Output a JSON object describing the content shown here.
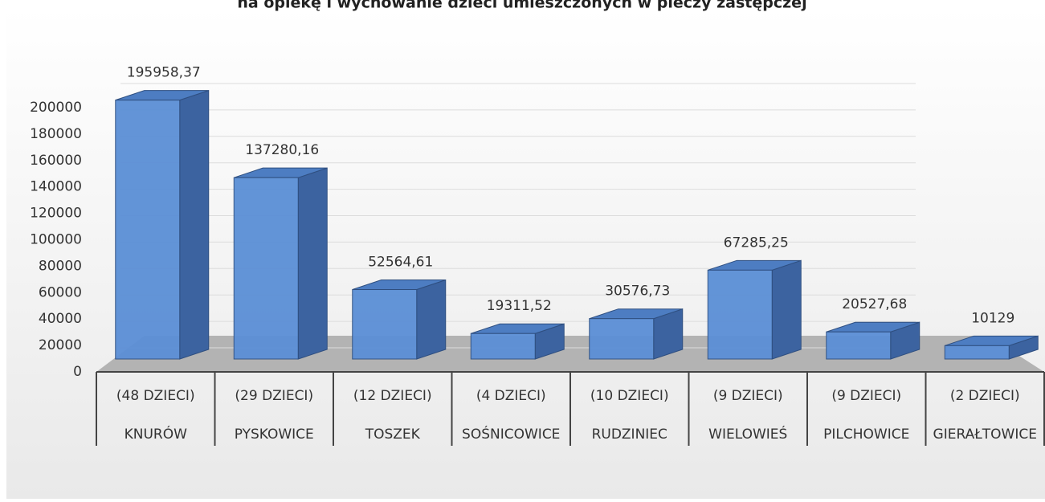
{
  "chart_data": {
    "type": "bar3d",
    "title": "na opiekę i wychowanie dzieci umieszczonych w pieczy zastępczej",
    "categories": [
      "KNURÓW",
      "PYSKOWICE",
      "TOSZEK",
      "SOŚNICOWICE",
      "RUDZINIEC",
      "WIELOWIEŚ",
      "PILCHOWICE",
      "GIERAŁTOWICE"
    ],
    "category_counts": [
      "(48 DZIECI)",
      "(29 DZIECI)",
      "(12 DZIECI)",
      "(4 DZIECI)",
      "(10 DZIECI)",
      "(9 DZIECI)",
      "(9 DZIECI)",
      "(2 DZIECI)"
    ],
    "values": [
      195958.37,
      137280.16,
      52564.61,
      19311.52,
      30576.73,
      67285.25,
      20527.68,
      10129
    ],
    "value_labels": [
      "195958,37",
      "137280,16",
      "52564,61",
      "19311,52",
      "30576,73",
      "67285,25",
      "20527,68",
      "10129"
    ],
    "color": "#5b8fd6",
    "ylim": [
      0,
      200000
    ],
    "yticks": [
      0,
      20000,
      40000,
      60000,
      80000,
      100000,
      120000,
      140000,
      160000,
      180000,
      200000
    ],
    "grid": true
  }
}
